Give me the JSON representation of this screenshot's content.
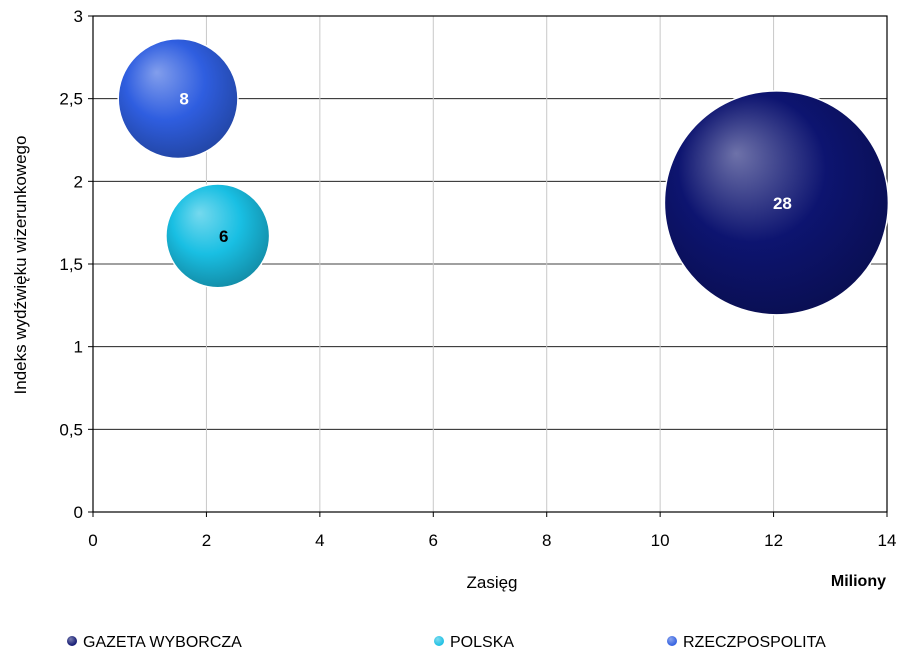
{
  "chart_data": {
    "type": "bubble",
    "xlabel": "Zasięg",
    "x_unit": "Miliony",
    "ylabel": "Indeks wydźwięku wizerunkowego",
    "xlim": [
      0,
      14
    ],
    "ylim": [
      0,
      3
    ],
    "x_ticks": [
      "0",
      "2",
      "4",
      "6",
      "8",
      "10",
      "12",
      "14"
    ],
    "y_ticks": [
      "0",
      "0,5",
      "1",
      "1,5",
      "2",
      "2,5",
      "3"
    ],
    "grid": true,
    "legend_position": "bottom",
    "series": [
      {
        "name": "GAZETA WYBORCZA",
        "x": 12.05,
        "y": 1.87,
        "size": 28,
        "label": "28",
        "color": "#0d1470",
        "label_color": "#ffffff"
      },
      {
        "name": "POLSKA",
        "x": 2.2,
        "y": 1.67,
        "size": 6,
        "label": "6",
        "color": "#19bfe3",
        "label_color": "#000000"
      },
      {
        "name": "RZECZPOSPOLITA",
        "x": 1.5,
        "y": 2.5,
        "size": 8,
        "label": "8",
        "color": "#2f5ee0",
        "label_color": "#ffffff"
      }
    ]
  }
}
